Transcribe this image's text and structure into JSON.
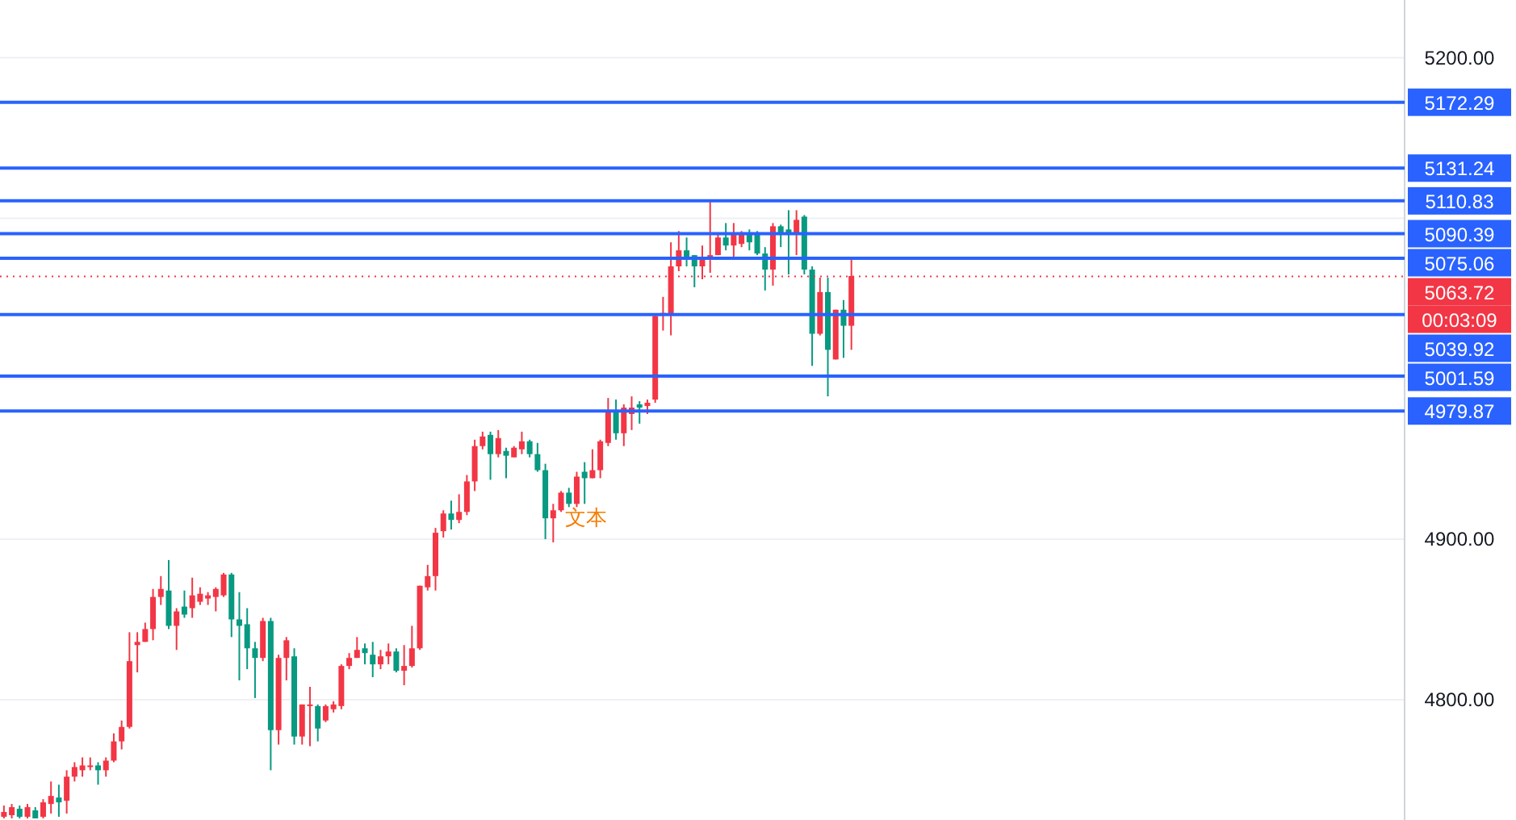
{
  "chart_data": {
    "type": "candlestick",
    "categories": [
      null,
      null,
      null,
      null,
      null,
      null,
      null,
      null,
      null,
      null,
      null,
      null,
      null,
      null,
      null,
      null,
      null,
      null,
      null,
      null,
      null,
      null,
      null,
      null,
      null,
      null,
      null,
      null,
      null,
      null,
      null,
      null,
      null,
      null,
      null,
      null,
      null,
      null,
      null,
      null,
      null,
      null,
      null,
      null,
      null,
      null,
      null,
      null,
      null,
      null,
      null,
      null,
      null,
      null,
      null,
      null,
      null,
      null,
      null,
      null,
      null,
      null,
      null,
      null,
      null,
      null,
      null,
      null,
      null,
      null,
      null,
      null,
      null,
      null,
      null,
      null,
      null,
      null,
      null,
      null,
      null,
      null,
      null,
      null,
      null,
      null,
      null,
      null,
      null,
      null,
      null,
      null,
      null,
      null,
      null,
      null,
      null,
      null,
      null,
      null,
      null,
      null,
      null,
      null,
      null,
      null,
      null,
      null,
      null,
      null,
      null,
      null,
      null,
      null,
      null,
      null,
      null,
      null,
      null,
      null,
      null,
      null,
      null,
      null,
      null,
      null,
      null,
      null,
      null,
      null,
      null,
      null,
      null,
      null,
      null,
      null,
      null,
      null,
      null,
      null,
      null,
      null,
      null,
      null,
      null,
      null,
      null,
      null,
      null,
      null,
      null,
      null,
      null,
      null,
      null,
      null,
      null,
      null,
      null,
      null,
      null,
      null,
      null,
      null,
      null,
      null,
      null,
      null,
      null,
      null,
      null,
      null,
      null,
      null,
      null,
      null,
      null,
      null,
      null
    ],
    "ohlc": [
      [
        4727,
        4734,
        4726,
        4730
      ],
      [
        4728,
        4735,
        4726,
        4733
      ],
      [
        4732,
        4734,
        4726,
        4727
      ],
      [
        4727,
        4735,
        4726,
        4733
      ],
      [
        4731,
        4733,
        4726,
        4726
      ],
      [
        4727,
        4738,
        4726,
        4736
      ],
      [
        4735,
        4749,
        4729,
        4740
      ],
      [
        4739,
        4747,
        4727,
        4736
      ],
      [
        4737,
        4756,
        4729,
        4752
      ],
      [
        4752,
        4761,
        4749,
        4758
      ],
      [
        4756,
        4764,
        4752,
        4759
      ],
      [
        4758,
        4764,
        4756,
        4759
      ],
      [
        4759,
        4761,
        4747,
        4756
      ],
      [
        4756,
        4764,
        4752,
        4762
      ],
      [
        4762,
        4779,
        4761,
        4774
      ],
      [
        4774,
        4787,
        4769,
        4783
      ],
      [
        4783,
        4842,
        4782,
        4824
      ],
      [
        4834,
        4842,
        4817,
        4836
      ],
      [
        4836,
        4848,
        4836,
        4844
      ],
      [
        4844,
        4869,
        4837,
        4864
      ],
      [
        4864,
        4877,
        4859,
        4869
      ],
      [
        4868,
        4887,
        4844,
        4846
      ],
      [
        4846,
        4857,
        4831,
        4855
      ],
      [
        4858,
        4868,
        4851,
        4853
      ],
      [
        4857,
        4876,
        4851,
        4865
      ],
      [
        4861,
        4870,
        4859,
        4866
      ],
      [
        4863,
        4867,
        4859,
        4865
      ],
      [
        4864,
        4870,
        4855,
        4869
      ],
      [
        4865,
        4879,
        4864,
        4878
      ],
      [
        4878,
        4879,
        4839,
        4850
      ],
      [
        4850,
        4867,
        4812,
        4846
      ],
      [
        4847,
        4857,
        4819,
        4832
      ],
      [
        4832,
        4836,
        4801,
        4826
      ],
      [
        4826,
        4851,
        4824,
        4849
      ],
      [
        4849,
        4851,
        4756,
        4781
      ],
      [
        4781,
        4828,
        4772,
        4826
      ],
      [
        4826,
        4839,
        4812,
        4837
      ],
      [
        4827,
        4832,
        4772,
        4777
      ],
      [
        4777,
        4797,
        4772,
        4797
      ],
      [
        4796,
        4808,
        4771,
        4797
      ],
      [
        4796,
        4797,
        4774,
        4782
      ],
      [
        4787,
        4797,
        4786,
        4796
      ],
      [
        4794,
        4799,
        4792,
        4797
      ],
      [
        4796,
        4822,
        4794,
        4821
      ],
      [
        4821,
        4829,
        4819,
        4826
      ],
      [
        4826,
        4839,
        4826,
        4831
      ],
      [
        4832,
        4835,
        4822,
        4829
      ],
      [
        4828,
        4836,
        4814,
        4822
      ],
      [
        4822,
        4831,
        4819,
        4827
      ],
      [
        4827,
        4835,
        4822,
        4830
      ],
      [
        4830,
        4832,
        4817,
        4818
      ],
      [
        4818,
        4834,
        4809,
        4821
      ],
      [
        4821,
        4846,
        4820,
        4832
      ],
      [
        4832,
        4871,
        4831,
        4871
      ],
      [
        4870,
        4884,
        4868,
        4877
      ],
      [
        4877,
        4907,
        4868,
        4904
      ],
      [
        4905,
        4918,
        4901,
        4916
      ],
      [
        4916,
        4924,
        4906,
        4912
      ],
      [
        4912,
        4928,
        4910,
        4917
      ],
      [
        4917,
        4940,
        4915,
        4936
      ],
      [
        4936,
        4962,
        4930,
        4958
      ],
      [
        4958,
        4967,
        4956,
        4964
      ],
      [
        4965,
        4967,
        4937,
        4953
      ],
      [
        4953,
        4968,
        4951,
        4963
      ],
      [
        4955,
        4957,
        4938,
        4952
      ],
      [
        4951,
        4958,
        4951,
        4957
      ],
      [
        4956,
        4967,
        4953,
        4961
      ],
      [
        4961,
        4962,
        4951,
        4953
      ],
      [
        4953,
        4960,
        4942,
        4943
      ],
      [
        4943,
        4947,
        4900,
        4913
      ],
      [
        4913,
        4922,
        4898,
        4918
      ],
      [
        4918,
        4930,
        4917,
        4929
      ],
      [
        4929,
        4932,
        4920,
        4922
      ],
      [
        4922,
        4942,
        4920,
        4939
      ],
      [
        4942,
        4948,
        4922,
        4938
      ],
      [
        4938,
        4956,
        4938,
        4943
      ],
      [
        4943,
        4962,
        4938,
        4961
      ],
      [
        4960,
        4988,
        4958,
        4979
      ],
      [
        4979,
        4987,
        4962,
        4966
      ],
      [
        4966,
        4984,
        4958,
        4982
      ],
      [
        4978,
        4989,
        4968,
        4982
      ],
      [
        4984,
        4986,
        4972,
        4982
      ],
      [
        4983,
        4987,
        4978,
        4985
      ],
      [
        4987,
        5040,
        4985,
        5039
      ],
      [
        5040,
        5051,
        5030,
        5041
      ],
      [
        5040,
        5085,
        5027,
        5070
      ],
      [
        5070,
        5092,
        5067,
        5080
      ],
      [
        5080,
        5088,
        5070,
        5076
      ],
      [
        5077,
        5077,
        5057,
        5070
      ],
      [
        5070,
        5083,
        5062,
        5075
      ],
      [
        5075,
        5111,
        5066,
        5077
      ],
      [
        5077,
        5091,
        5077,
        5088
      ],
      [
        5088,
        5097,
        5080,
        5083
      ],
      [
        5083,
        5097,
        5075,
        5090
      ],
      [
        5084,
        5092,
        5082,
        5090
      ],
      [
        5090,
        5093,
        5080,
        5085
      ],
      [
        5091,
        5092,
        5077,
        5078
      ],
      [
        5078,
        5082,
        5055,
        5068
      ],
      [
        5068,
        5097,
        5058,
        5095
      ],
      [
        5095,
        5096,
        5082,
        5090
      ],
      [
        5093,
        5105,
        5065,
        5090
      ],
      [
        5090,
        5105,
        5077,
        5099
      ],
      [
        5101,
        5102,
        5065,
        5068
      ],
      [
        5068,
        5070,
        5008,
        5028
      ],
      [
        5028,
        5063,
        5027,
        5054
      ],
      [
        5054,
        5063,
        4989,
        5018
      ],
      [
        5012,
        5043,
        5012,
        5043
      ],
      [
        5043,
        5049,
        5013,
        5033
      ],
      [
        5033,
        5075,
        5018,
        5064
      ],
      null,
      null,
      null,
      null,
      null,
      null,
      null,
      null,
      null,
      null,
      null,
      null,
      null,
      null,
      null,
      null,
      null,
      null,
      null,
      null,
      null,
      null,
      null,
      null,
      null,
      null,
      null,
      null,
      null,
      null,
      null,
      null,
      null,
      null,
      null,
      null,
      null,
      null,
      null,
      null,
      null,
      null,
      null,
      null,
      null,
      null,
      null,
      null,
      null,
      null,
      null,
      null,
      null,
      null,
      null,
      null,
      null,
      null,
      null,
      null,
      null,
      null,
      null,
      null,
      null,
      null,
      null,
      null,
      null,
      null
    ],
    "colors": [
      "#f23645",
      "#f23645",
      "#089981",
      "#f23645",
      "#089981",
      "#f23645",
      "#f23645",
      "#089981",
      "#f23645",
      "#f23645",
      "#f23645",
      "#f23645",
      "#089981",
      "#f23645",
      "#f23645",
      "#f23645",
      "#f23645",
      "#f23645",
      "#f23645",
      "#f23645",
      "#f23645",
      "#089981",
      "#f23645",
      "#089981",
      "#f23645",
      "#f23645",
      "#f23645",
      "#f23645",
      "#f23645",
      "#089981",
      "#089981",
      "#089981",
      "#089981",
      "#f23645",
      "#089981",
      "#f23645",
      "#f23645",
      "#089981",
      "#f23645",
      "#f23645",
      "#089981",
      "#f23645",
      "#f23645",
      "#f23645",
      "#f23645",
      "#f23645",
      "#089981",
      "#089981",
      "#f23645",
      "#f23645",
      "#089981",
      "#f23645",
      "#f23645",
      "#f23645",
      "#f23645",
      "#f23645",
      "#f23645",
      "#089981",
      "#f23645",
      "#f23645",
      "#f23645",
      "#f23645",
      "#089981",
      "#f23645",
      "#089981",
      "#f23645",
      "#f23645",
      "#089981",
      "#089981",
      "#089981",
      "#f23645",
      "#f23645",
      "#089981",
      "#f23645",
      "#089981",
      "#f23645",
      "#f23645",
      "#f23645",
      "#089981",
      "#f23645",
      "#f23645",
      "#089981",
      "#f23645",
      "#f23645",
      "#f23645",
      "#f23645",
      "#f23645",
      "#089981",
      "#089981",
      "#f23645",
      "#f23645",
      "#f23645",
      "#089981",
      "#f23645",
      "#f23645",
      "#089981",
      "#089981",
      "#089981",
      "#f23645",
      "#089981",
      "#089981",
      "#f23645",
      "#089981",
      "#089981",
      "#f23645",
      "#089981",
      "#f23645",
      "#089981",
      "#f23645",
      null,
      null,
      null,
      null,
      null,
      null,
      null,
      null,
      null,
      null,
      null,
      null,
      null,
      null,
      null,
      null,
      null,
      null,
      null,
      null,
      null,
      null,
      null,
      null,
      null,
      null,
      null,
      null,
      null,
      null,
      null,
      null,
      null,
      null,
      null,
      null,
      null,
      null,
      null,
      null,
      null,
      null,
      null,
      null,
      null,
      null,
      null,
      null,
      null,
      null,
      null,
      null,
      null,
      null,
      null,
      null,
      null,
      null,
      null,
      null,
      null,
      null,
      null,
      null,
      null,
      null,
      null,
      null,
      null,
      null
    ],
    "ylim": [
      4725,
      5236
    ],
    "yticks": [
      {
        "value": 4800,
        "label": "4800.00"
      },
      {
        "value": 4900,
        "label": "4900.00"
      },
      {
        "value": 5000,
        "label": null
      },
      {
        "value": 5100,
        "label": null
      },
      {
        "value": 5200,
        "label": "5200.00"
      }
    ],
    "grid": "y",
    "ref_lines": [
      {
        "axis": "y",
        "value": 5172.29,
        "label": "5172.29",
        "color": "#2962ff",
        "line_style": "solid"
      },
      {
        "axis": "y",
        "value": 5131.24,
        "label": "5131.24",
        "color": "#2962ff",
        "line_style": "solid"
      },
      {
        "axis": "y",
        "value": 5110.83,
        "label": "5110.83",
        "color": "#2962ff",
        "line_style": "solid"
      },
      {
        "axis": "y",
        "value": 5090.39,
        "label": "5090.39",
        "color": "#2962ff",
        "line_style": "solid"
      },
      {
        "axis": "y",
        "value": 5075.06,
        "label": "5075.06",
        "color": "#2962ff",
        "line_style": "solid"
      },
      {
        "axis": "y",
        "value": 5063.72,
        "label": "5063.72",
        "color": "#f23645",
        "line_style": "dotted"
      },
      {
        "axis": "y",
        "value": 5039.92,
        "label": "5039.92",
        "color": "#2962ff",
        "line_style": "solid"
      },
      {
        "axis": "y",
        "value": 5001.59,
        "label": "5001.59",
        "color": "#2962ff",
        "line_style": "solid"
      },
      {
        "axis": "y",
        "value": 4979.87,
        "label": "4979.87",
        "color": "#2962ff",
        "line_style": "solid"
      }
    ],
    "annotations": [
      "文本",
      "00:03:09"
    ]
  }
}
